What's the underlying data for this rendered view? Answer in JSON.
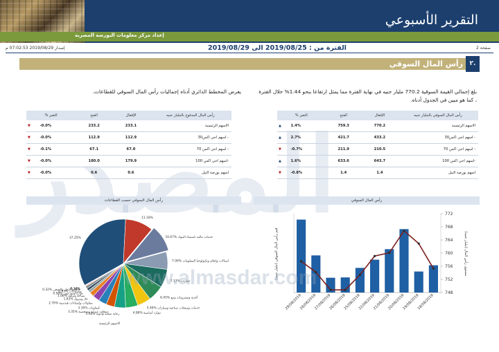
{
  "header": {
    "title": "التقرير الأسبوعي",
    "subtitle": "إعداد مركز معلومات البورصة المصرية"
  },
  "meta": {
    "page": "صفحة 2",
    "period": "الفترة من : 2019/08/25 الى 2019/08/29",
    "issue": "إصدار 2019/08/29 07:02:53 م"
  },
  "section": {
    "number": "٢.",
    "title": "رأس المال السوقي"
  },
  "paragraphs": {
    "right": "بلغ إجمالي القيمة السوقية 770.2 مليار جنيه في نهاية الفترة مما يمثل ارتفاعا بنحو 1.44% خلال الفترة ، كما هو مبين في الجدول أدناه.",
    "left": "يعرض المخطط الدائري أدناه إجماليات رأس المال السوقي للقطاعات."
  },
  "colors": {
    "navy": "#1c3f6e",
    "green": "#7a9a3c",
    "gold": "#c2b27a",
    "up": "#1c3f6e",
    "down": "#b3171b"
  },
  "table_market": {
    "headers": [
      "رأس المال السوقي بالمليار جنيه",
      "الإقفال",
      "الفتح",
      "% التغير"
    ],
    "rows": [
      {
        "name": "الاسهم الرئيسية",
        "close": "770.2",
        "open": "759.3",
        "change": "1.4%",
        "dir": "up"
      },
      {
        "name": "- اسهم اجي اكس30",
        "close": "433.2",
        "open": "421.7",
        "change": "2.7%",
        "dir": "up"
      },
      {
        "name": "- اسهم اجي اكس 70",
        "close": "210.5",
        "open": "211.9",
        "change": "-0.7%",
        "dir": "down"
      },
      {
        "name": "-اسهم اجي اكس 100",
        "close": "643.7",
        "open": "633.6",
        "change": "1.6%",
        "dir": "up"
      },
      {
        "name": "اسهم بورصة النيل",
        "close": "1.4",
        "open": "1.4",
        "change": "-0.8%",
        "dir": "down"
      }
    ]
  },
  "table_paidup": {
    "headers": [
      "رأس المال المدفوع بالمليار جنيه",
      "الإقفال",
      "الفتح",
      "% التغير"
    ],
    "rows": [
      {
        "name": "الاسهم الرئيسية",
        "close": "233.1",
        "open": "233.2",
        "change": "-0.0%",
        "dir": "down"
      },
      {
        "name": "- اسهم اجي اكس30",
        "close": "112.9",
        "open": "112.9",
        "change": "-0.0%",
        "dir": "down"
      },
      {
        "name": "- اسهم اجي اكس 70",
        "close": "67.0",
        "open": "67.1",
        "change": "-0.1%",
        "dir": "down"
      },
      {
        "name": "-اسهم اجي اكس 100",
        "close": "179.9",
        "open": "180.0",
        "change": "-0.0%",
        "dir": "down"
      },
      {
        "name": "اسهم بورصة النيل",
        "close": "0.6",
        "open": "0.6",
        "change": "-0.0%",
        "dir": "down"
      }
    ]
  },
  "chart_data": [
    {
      "type": "bar",
      "title": "رأس المال السوقي",
      "ylabel": "قيم رأس المال السوقي (مليار جنيه)",
      "y2label": "مستوى رأس المال (مليار جنيه)",
      "categories": [
        "29/08/2019",
        "28/08/2019",
        "27/08/2019",
        "26/08/2019",
        "25/08/2019",
        "22/08/2019",
        "21/08/2019",
        "20/08/2019",
        "19/08/2019",
        "18/08/2019"
      ],
      "series": [
        {
          "values": [
            770.2,
            759.3,
            752.5,
            752.6,
            755.5,
            758.0,
            761.2,
            767.3,
            754.4,
            756.3
          ]
        },
        {
          "values": [
            757.5,
            754.2,
            748.8,
            748.8,
            753.4,
            759.1,
            760.1,
            766.8,
            762.9,
            755.3
          ]
        }
      ],
      "y2ticks": [
        "772",
        "768",
        "764",
        "760",
        "756",
        "752",
        "748"
      ],
      "y2lim": [
        748,
        772
      ]
    },
    {
      "type": "pie",
      "title": "رأس المال السوقي حسب القطاعات",
      "slices": [
        {
          "label": "37.25%",
          "value": 37.25,
          "color": "#1f4e79"
        },
        {
          "label": "11.18%",
          "value": 11.18,
          "color": "#c0392b"
        },
        {
          "label": "10.67% خدمات مالية باستثناء البنوك",
          "value": 10.67,
          "color": "#6b7b9e"
        },
        {
          "label": "7.06% اتصالات وإعلام وتكنولوجيا المعلومات",
          "value": 7.06,
          "color": "#8a9bb2"
        },
        {
          "label": "7.33% عقارات",
          "value": 7.33,
          "color": "#1b6b5f"
        },
        {
          "label": "6.45% أغذية ومشروبات وتبغ",
          "value": 6.45,
          "color": "#2e8b57"
        },
        {
          "label": "5.46% خدمات ومنتجات صناعية وسيارات",
          "value": 5.46,
          "color": "#f1c40f"
        },
        {
          "label": "4.88% موارد أساسية",
          "value": 4.88,
          "color": "#27ae60"
        },
        {
          "label": "4.48% رعاية صحية وأدوية",
          "value": 4.48,
          "color": "#16a085"
        },
        {
          "label": "3.35% منتجات منزلية وشخصية",
          "value": 3.35,
          "color": "#d35400"
        },
        {
          "label": "3.30% كيماويات",
          "value": 3.3,
          "color": "#2980b9"
        },
        {
          "label": "2.76% مقاولات وإنشاءات هندسية",
          "value": 2.76,
          "color": "#8e44ad"
        },
        {
          "label": "1.83% غاز وبترول",
          "value": 1.83,
          "color": "#e67e22"
        },
        {
          "label": "1.06% سياحة وترفيه",
          "value": 1.06,
          "color": "#95a5a6"
        },
        {
          "label": "0.98% تجارة وموزعون",
          "value": 0.98,
          "color": "#34495e"
        },
        {
          "label": "0.93% منسوجات",
          "value": 0.93,
          "color": "#7f8c8d"
        },
        {
          "label": "0.32% خدمات النقل والشحن",
          "value": 0.32,
          "color": "#c0392b"
        },
        {
          "label": "0.18%",
          "value": 0.18,
          "color": "#bdc3c7"
        },
        {
          "label": "0.14%",
          "value": 0.14,
          "color": "#2c3e50"
        }
      ],
      "bottom_label": "الاسهم الرئيسية"
    }
  ],
  "watermark": {
    "big": "المصدر",
    "url": "www.almasdar.com"
  }
}
